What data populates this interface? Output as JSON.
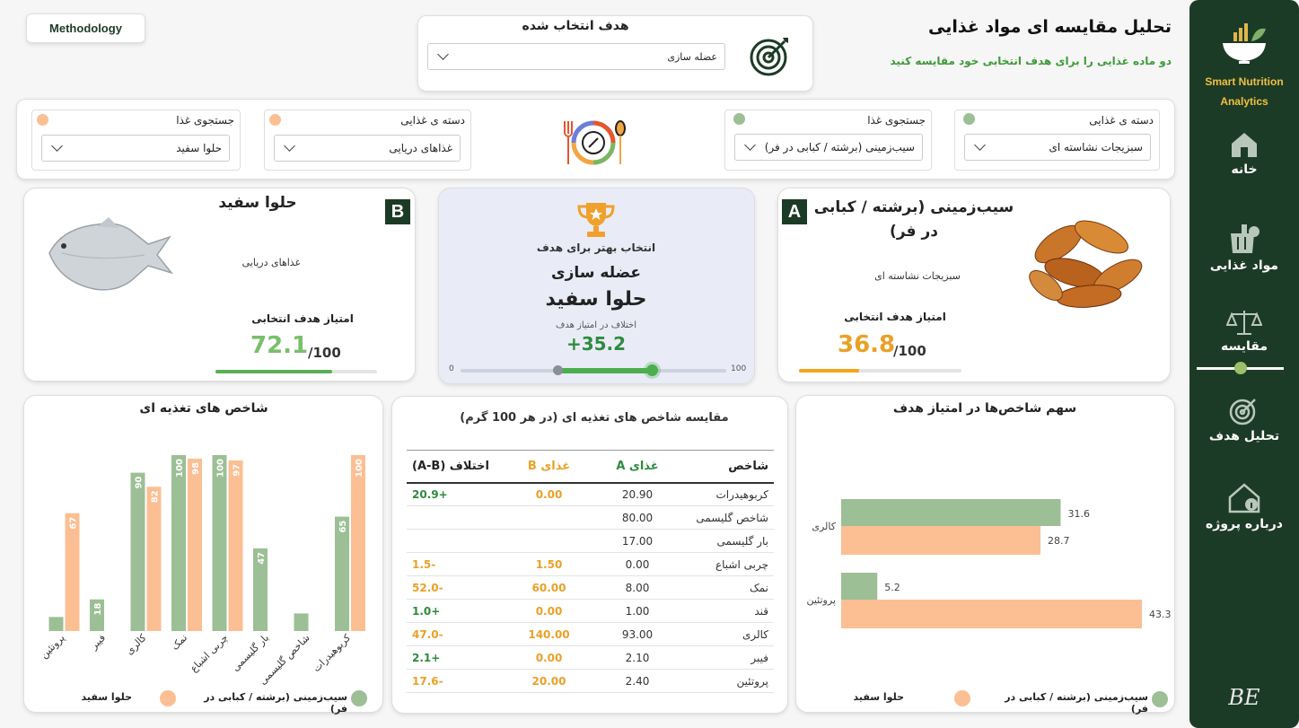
{
  "header": {
    "title": "تحلیل مقایسه ای مواد غذایی",
    "subtitle": "دو ماده غذایی را برای هدف انتخابی خود مقایسه کنید",
    "methodology_label": "Methodology"
  },
  "goal": {
    "label": "هدف انتخاب شده",
    "value": "عضله سازی"
  },
  "filters": {
    "a": {
      "category_label": "دسته ی غذایی",
      "category_value": "سبزیجات نشاسته ای",
      "search_label": "جستجوی غذا",
      "search_value": "سیب‌زمینی (برشته / کبابی در فر)"
    },
    "b": {
      "category_label": "دسته ی غذایی",
      "category_value": "غذاهای دریایی",
      "search_label": "جستجوی غذا",
      "search_value": "حلوا سفید"
    }
  },
  "food_a": {
    "badge": "A",
    "name": "سیب‌زمینی (برشته / کبابی در فر)",
    "category": "سبزیجات نشاسته ای",
    "score_label": "امتیاز هدف انتخابی",
    "score": "36.8",
    "score_max": "/100",
    "score_value": 36.8
  },
  "food_b": {
    "badge": "B",
    "name": "حلوا سفید",
    "category": "غذاهای دریایی",
    "score_label": "امتیاز هدف انتخابی",
    "score": "72.1",
    "score_max": "/100",
    "score_value": 72.1
  },
  "best": {
    "label": "انتخاب بهتر برای هدف",
    "goal": "عضله سازی",
    "winner": "حلوا سفید",
    "diff_label": "اختلاف در امتیاز هدف",
    "diff": "+35.2",
    "slider_min": "0",
    "slider_max": "100"
  },
  "sidebar": {
    "brand": "Smart Nutrition Analytics",
    "items": [
      {
        "label": "خانه",
        "icon": "home-icon"
      },
      {
        "label": "مواد غذایی",
        "icon": "grocery-icon"
      },
      {
        "label": "مقایسه",
        "icon": "scale-icon"
      },
      {
        "label": "تحلیل هدف",
        "icon": "target-icon"
      },
      {
        "label": "درباره پروژه",
        "icon": "info-icon"
      }
    ],
    "signature": "BE"
  },
  "colors": {
    "a": "#9cbf95",
    "b": "#fbbf93",
    "sidebar": "#1c3b26",
    "green": "#2e8b3e",
    "orange": "#e0a020"
  },
  "nutrition_chart": {
    "title": "شاخص های تغذیه ای",
    "legend_a": "سیب‌زمینی (برشته / کبابی در فر)",
    "legend_b": "حلوا سفید"
  },
  "chart_data": [
    {
      "type": "bar",
      "title": "شاخص های تغذیه ای",
      "categories": [
        "کربوهیدرات",
        "شاخص گلیسمی",
        "بار گلیسمی",
        "چربی اشباع",
        "نمک",
        "کالری",
        "فیبر",
        "پروتئین"
      ],
      "series": [
        {
          "name": "سیب‌زمینی (برشته / کبابی در فر)",
          "values": [
            65,
            10,
            47,
            100,
            100,
            90,
            18,
            8
          ]
        },
        {
          "name": "حلوا سفید",
          "values": [
            100,
            0,
            0,
            97,
            98,
            82,
            0,
            67
          ]
        }
      ],
      "labels_a": [
        "65",
        "",
        "47",
        "100",
        "100",
        "90",
        "18",
        ""
      ],
      "labels_b": [
        "100",
        "",
        "",
        "97",
        "98",
        "82",
        "",
        "67"
      ],
      "ylim": [
        0,
        100
      ]
    },
    {
      "type": "bar",
      "orientation": "horizontal",
      "title": "سهم شاخص‌ها در امتیاز هدف",
      "categories": [
        "کالری",
        "پروتئین"
      ],
      "series": [
        {
          "name": "سیب‌زمینی (برشته / کبابی در فر)",
          "values": [
            31.6,
            5.2
          ]
        },
        {
          "name": "حلوا سفید",
          "values": [
            28.7,
            43.3
          ]
        }
      ]
    }
  ],
  "table": {
    "title": "مقایسه شاخص های تغذیه ای (در هر 100 گرم)",
    "headers": {
      "metric": "شاخص",
      "a": "غذای A",
      "b": "غذای B",
      "diff": "اختلاف (A-B)"
    },
    "rows": [
      {
        "metric": "کربوهیدرات",
        "a": "20.90",
        "b": "0.00",
        "diff": "+20.9"
      },
      {
        "metric": "شاخص گلیسمی",
        "a": "80.00",
        "b": "",
        "diff": ""
      },
      {
        "metric": "بار گلیسمی",
        "a": "17.00",
        "b": "",
        "diff": ""
      },
      {
        "metric": "چربی اشباع",
        "a": "0.00",
        "b": "1.50",
        "diff": "-1.5"
      },
      {
        "metric": "نمک",
        "a": "8.00",
        "b": "60.00",
        "diff": "-52.0"
      },
      {
        "metric": "قند",
        "a": "1.00",
        "b": "0.00",
        "diff": "+1.0"
      },
      {
        "metric": "کالری",
        "a": "93.00",
        "b": "140.00",
        "diff": "-47.0"
      },
      {
        "metric": "فیبر",
        "a": "2.10",
        "b": "0.00",
        "diff": "+2.1"
      },
      {
        "metric": "پروتئین",
        "a": "2.40",
        "b": "20.00",
        "diff": "-17.6"
      }
    ]
  },
  "contrib_chart": {
    "title": "سهم شاخص‌ها در امتیاز هدف",
    "legend_a": "سیب‌زمینی (برشته / کبابی در فر)",
    "legend_b": "حلوا سفید"
  }
}
